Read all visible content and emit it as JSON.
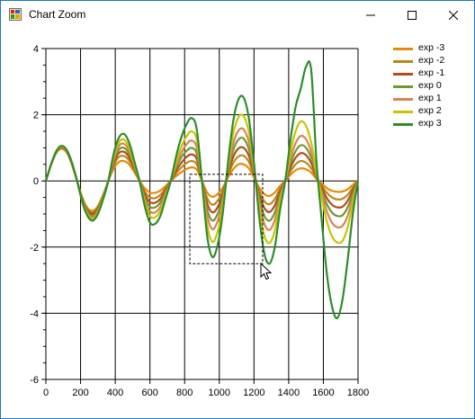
{
  "window": {
    "title": "Chart Zoom",
    "icon": "chart-app-icon"
  },
  "title_bar": {
    "minimize_icon": "minimize-icon",
    "maximize_icon": "maximize-icon",
    "close_icon": "close-icon"
  },
  "chart_data": {
    "type": "line",
    "x": [
      0,
      30,
      60,
      90,
      120,
      150,
      180,
      210,
      240,
      270,
      300,
      330,
      360,
      390,
      420,
      450,
      480,
      510,
      540,
      570,
      600,
      630,
      660,
      690,
      720,
      750,
      780,
      810,
      840,
      870,
      900,
      930,
      960,
      990,
      1020,
      1050,
      1080,
      1110,
      1140,
      1170,
      1200,
      1230,
      1260,
      1290,
      1320,
      1350,
      1380,
      1410,
      1440,
      1470,
      1500,
      1530,
      1560,
      1590,
      1620,
      1650,
      1680,
      1710,
      1740,
      1770,
      1800
    ],
    "series": [
      {
        "name": "exp -3",
        "color": "#e8890c",
        "values": [
          0,
          0.48,
          0.84,
          0.97,
          0.86,
          0.5,
          0,
          -0.5,
          -0.82,
          -0.9,
          -0.76,
          -0.42,
          0,
          0.36,
          0.57,
          0.6,
          0.5,
          0.27,
          0,
          -0.22,
          -0.35,
          -0.36,
          -0.29,
          -0.16,
          0,
          0.14,
          0.26,
          0.36,
          0.41,
          0.34,
          0,
          -0.35,
          -0.48,
          -0.4,
          -0.2,
          0.1,
          0.35,
          0.5,
          0.5,
          0.38,
          0.1,
          -0.2,
          -0.4,
          -0.45,
          -0.35,
          -0.15,
          0,
          0.18,
          0.32,
          0.38,
          0.35,
          0.25,
          0.06,
          -0.08,
          -0.22,
          -0.3,
          -0.33,
          -0.32,
          -0.25,
          -0.12,
          0
        ]
      },
      {
        "name": "exp -2",
        "color": "#b68a17",
        "values": [
          0,
          0.5,
          0.87,
          1.0,
          0.88,
          0.5,
          0,
          -0.52,
          -0.86,
          -0.95,
          -0.8,
          -0.45,
          0,
          0.45,
          0.72,
          0.75,
          0.62,
          0.32,
          0,
          -0.32,
          -0.5,
          -0.52,
          -0.42,
          -0.22,
          0,
          0.22,
          0.4,
          0.54,
          0.6,
          0.5,
          0,
          -0.52,
          -0.72,
          -0.6,
          -0.3,
          0.16,
          0.54,
          0.74,
          0.76,
          0.58,
          0.16,
          -0.3,
          -0.62,
          -0.7,
          -0.55,
          -0.24,
          0,
          0.28,
          0.5,
          0.6,
          0.55,
          0.38,
          0.1,
          -0.14,
          -0.36,
          -0.5,
          -0.56,
          -0.54,
          -0.42,
          -0.2,
          0
        ]
      },
      {
        "name": "exp -1",
        "color": "#b24a1e",
        "values": [
          0,
          0.5,
          0.88,
          1.02,
          0.9,
          0.52,
          0,
          -0.55,
          -0.9,
          -1.0,
          -0.84,
          -0.47,
          0,
          0.52,
          0.84,
          0.88,
          0.72,
          0.38,
          0,
          -0.4,
          -0.64,
          -0.66,
          -0.54,
          -0.28,
          0,
          0.3,
          0.54,
          0.72,
          0.8,
          0.66,
          0,
          -0.68,
          -0.95,
          -0.8,
          -0.4,
          0.22,
          0.72,
          0.98,
          1.0,
          0.76,
          0.22,
          -0.4,
          -0.82,
          -0.94,
          -0.74,
          -0.32,
          0,
          0.4,
          0.7,
          0.84,
          0.78,
          0.54,
          0.14,
          -0.2,
          -0.52,
          -0.72,
          -0.8,
          -0.78,
          -0.6,
          -0.28,
          0
        ]
      },
      {
        "name": "exp 0",
        "color": "#6e9a30",
        "values": [
          0,
          0.5,
          0.88,
          1.03,
          0.91,
          0.53,
          0,
          -0.57,
          -0.94,
          -1.05,
          -0.88,
          -0.49,
          0,
          0.58,
          0.94,
          1.0,
          0.82,
          0.43,
          0,
          -0.48,
          -0.78,
          -0.8,
          -0.65,
          -0.34,
          0,
          0.38,
          0.7,
          0.9,
          1.0,
          0.82,
          0,
          -0.86,
          -1.2,
          -1.0,
          -0.5,
          0.28,
          0.92,
          1.25,
          1.28,
          0.96,
          0.28,
          -0.52,
          -1.06,
          -1.2,
          -0.95,
          -0.42,
          0,
          0.52,
          0.9,
          1.08,
          1.0,
          0.7,
          0.18,
          -0.28,
          -0.7,
          -0.96,
          -1.06,
          -1.04,
          -0.8,
          -0.38,
          0
        ]
      },
      {
        "name": "exp 1",
        "color": "#d8835a",
        "values": [
          0,
          0.5,
          0.89,
          1.04,
          0.92,
          0.54,
          0,
          -0.6,
          -0.98,
          -1.1,
          -0.92,
          -0.52,
          0,
          0.65,
          1.05,
          1.12,
          0.92,
          0.48,
          0,
          -0.56,
          -0.92,
          -0.95,
          -0.78,
          -0.4,
          0,
          0.46,
          0.84,
          1.1,
          1.22,
          1.0,
          0,
          -1.04,
          -1.46,
          -1.22,
          -0.62,
          0.34,
          1.12,
          1.52,
          1.56,
          1.18,
          0.34,
          -0.64,
          -1.3,
          -1.48,
          -1.18,
          -0.52,
          0,
          0.66,
          1.14,
          1.36,
          1.26,
          0.88,
          0.22,
          -0.36,
          -0.92,
          -1.26,
          -1.4,
          -1.36,
          -1.06,
          -0.5,
          0
        ]
      },
      {
        "name": "exp 2",
        "color": "#c8c400",
        "values": [
          0,
          0.5,
          0.9,
          1.05,
          0.93,
          0.55,
          0,
          -0.62,
          -1.02,
          -1.15,
          -0.96,
          -0.54,
          0,
          0.72,
          1.16,
          1.25,
          1.02,
          0.54,
          0,
          -0.64,
          -1.06,
          -1.1,
          -0.9,
          -0.46,
          0,
          0.56,
          1.02,
          1.34,
          1.5,
          1.24,
          0,
          -1.32,
          -1.84,
          -1.54,
          -0.78,
          0.42,
          1.42,
          1.92,
          1.96,
          1.48,
          0.42,
          -0.82,
          -1.66,
          -1.88,
          -1.5,
          -0.66,
          0,
          0.86,
          1.5,
          1.8,
          1.66,
          1.16,
          0.3,
          -0.5,
          -1.22,
          -1.68,
          -1.86,
          -1.82,
          -1.4,
          -0.66,
          0
        ]
      },
      {
        "name": "exp 3",
        "color": "#2c8c2c",
        "values": [
          0,
          0.5,
          0.9,
          1.06,
          0.94,
          0.56,
          0,
          -0.64,
          -1.06,
          -1.2,
          -1.0,
          -0.56,
          0,
          0.8,
          1.3,
          1.42,
          1.16,
          0.6,
          0,
          -0.76,
          -1.26,
          -1.3,
          -1.06,
          -0.54,
          0,
          0.72,
          1.3,
          1.7,
          1.9,
          1.56,
          0,
          -1.66,
          -2.3,
          -1.94,
          -0.98,
          0.54,
          1.8,
          2.46,
          2.52,
          1.9,
          0.54,
          -1.08,
          -2.2,
          -2.5,
          -2.0,
          -0.88,
          0,
          1.22,
          2.24,
          2.8,
          3.45,
          3.35,
          0.62,
          -1.16,
          -2.8,
          -3.8,
          -4.15,
          -3.6,
          -2.4,
          -1.0,
          0
        ]
      }
    ],
    "xlim": [
      0,
      1800
    ],
    "ylim": [
      -6,
      4
    ],
    "xticks": [
      "0",
      "200",
      "400",
      "600",
      "800",
      "1000",
      "1200",
      "1400",
      "1600",
      "1800"
    ],
    "yticks": [
      "-6",
      "-4",
      "-2",
      "0",
      "2",
      "4"
    ],
    "xlabel": "",
    "ylabel": "",
    "title": "",
    "grid": true,
    "legend_position": "top-right",
    "zoom_selection": {
      "x_range": [
        830,
        1250
      ],
      "y_range": [
        -2.5,
        0.2
      ]
    }
  }
}
